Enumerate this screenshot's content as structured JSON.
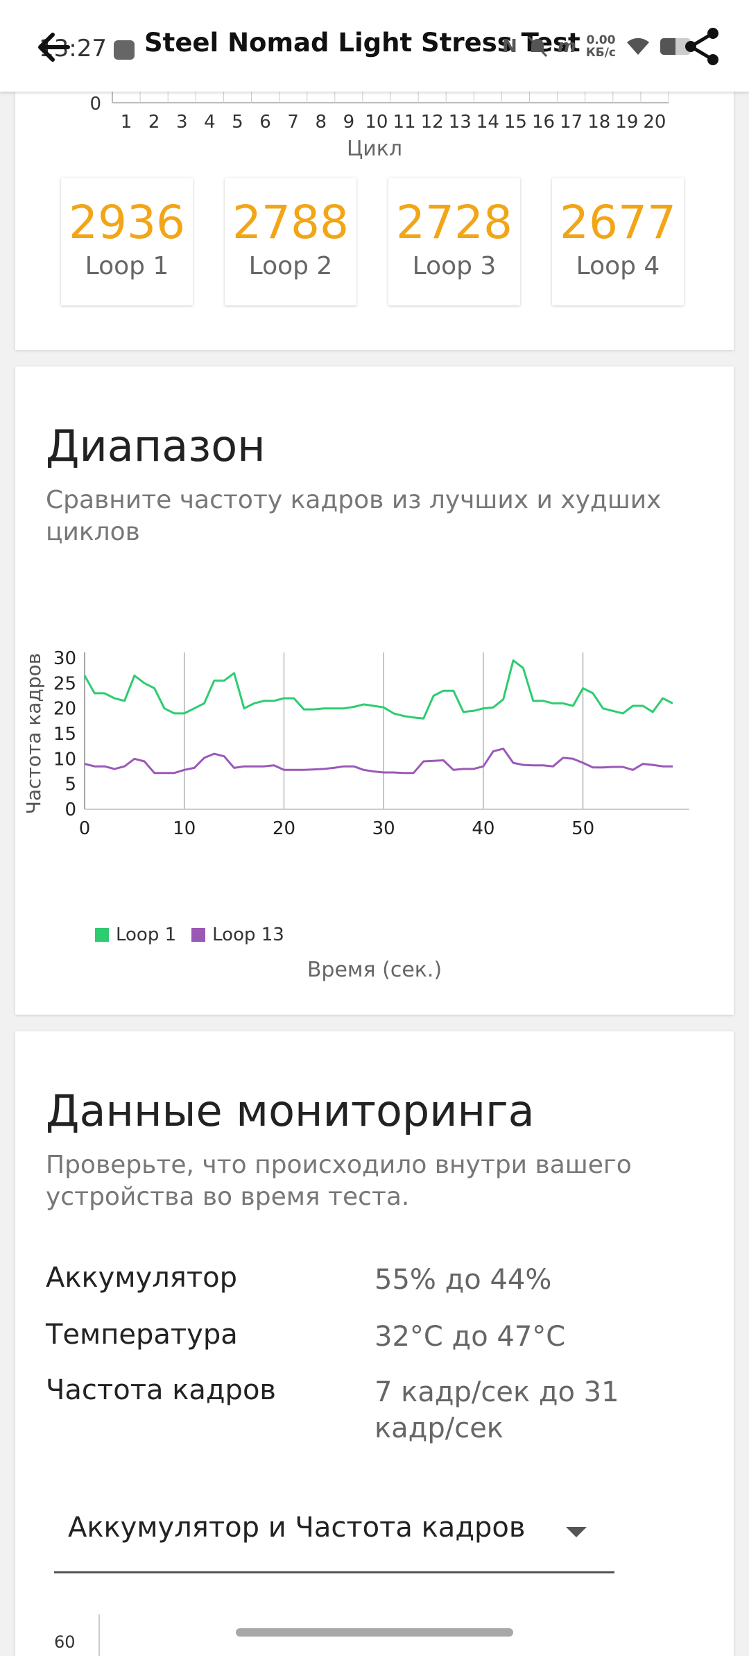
{
  "status": {
    "time": "13:27",
    "net_speed": "0.00",
    "net_unit": "КБ/с"
  },
  "header": {
    "title": "Steel Nomad Light Stress Test"
  },
  "top_chart": {
    "x_ticks": [
      "1",
      "2",
      "3",
      "4",
      "5",
      "6",
      "7",
      "8",
      "9",
      "10",
      "11",
      "12",
      "13",
      "14",
      "15",
      "16",
      "17",
      "18",
      "19",
      "20"
    ],
    "y_tick": "0",
    "xlabel": "Цикл"
  },
  "loops": [
    {
      "score": "2936",
      "label": "Loop 1"
    },
    {
      "score": "2788",
      "label": "Loop 2"
    },
    {
      "score": "2728",
      "label": "Loop 3"
    },
    {
      "score": "2677",
      "label": "Loop 4"
    }
  ],
  "range_section": {
    "title": "Диапазон",
    "subtitle": "Сравните частоту кадров из лучших и худших циклов"
  },
  "chart_data": {
    "type": "line",
    "ylabel": "Частота кадров",
    "xlabel": "Время (сек.)",
    "xlim": [
      0,
      59
    ],
    "ylim": [
      0,
      30
    ],
    "x_ticks": [
      0,
      10,
      20,
      30,
      40,
      50
    ],
    "y_ticks": [
      0,
      5,
      10,
      15,
      20,
      25,
      30
    ],
    "legend_position": "bottom-left",
    "series": [
      {
        "name": "Loop 1",
        "color": "#2ecc71",
        "x": [
          0,
          1,
          2,
          3,
          4,
          5,
          6,
          7,
          8,
          9,
          10,
          11,
          12,
          13,
          14,
          15,
          16,
          17,
          18,
          19,
          20,
          21,
          22,
          23,
          24,
          25,
          26,
          27,
          28,
          29,
          30,
          31,
          32,
          33,
          34,
          35,
          36,
          37,
          38,
          39,
          40,
          41,
          42,
          43,
          44,
          45,
          46,
          47,
          48,
          49,
          50,
          51,
          52,
          53,
          54,
          55,
          56,
          57,
          58,
          59
        ],
        "y": [
          26.5,
          23,
          23,
          22,
          21.5,
          26.5,
          25,
          24,
          20,
          19,
          19,
          20,
          21,
          25.5,
          25.5,
          27,
          20,
          21,
          21.5,
          21.5,
          22,
          22,
          19.8,
          19.8,
          20,
          20,
          20,
          20.3,
          20.8,
          20.5,
          20.2,
          19,
          18.5,
          18.2,
          18,
          22.5,
          23.5,
          23.5,
          19.3,
          19.5,
          20,
          20.2,
          21.8,
          29.5,
          28,
          21.5,
          21.5,
          21,
          21,
          20.5,
          24,
          23,
          20,
          19.5,
          19,
          20.5,
          20.5,
          19.3,
          22,
          21
        ]
      },
      {
        "name": "Loop 13",
        "color": "#9b59b6",
        "x": [
          0,
          1,
          2,
          3,
          4,
          5,
          6,
          7,
          8,
          9,
          10,
          11,
          12,
          13,
          14,
          15,
          16,
          17,
          18,
          19,
          20,
          21,
          22,
          23,
          24,
          25,
          26,
          27,
          28,
          29,
          30,
          31,
          32,
          33,
          34,
          35,
          36,
          37,
          38,
          39,
          40,
          41,
          42,
          43,
          44,
          45,
          46,
          47,
          48,
          49,
          50,
          51,
          52,
          53,
          54,
          55,
          56,
          57,
          58,
          59
        ],
        "y": [
          9,
          8.5,
          8.5,
          8,
          8.5,
          10,
          9.5,
          7.2,
          7.2,
          7.2,
          7.8,
          8.2,
          10.2,
          11,
          10.5,
          8.2,
          8.5,
          8.5,
          8.5,
          8.7,
          7.8,
          7.8,
          7.8,
          7.9,
          8,
          8.2,
          8.5,
          8.5,
          7.8,
          7.5,
          7.3,
          7.3,
          7.2,
          7.2,
          9.5,
          9.6,
          9.7,
          7.8,
          8,
          8,
          8.5,
          11.5,
          12,
          9.2,
          8.8,
          8.7,
          8.7,
          8.5,
          10.2,
          10,
          9.2,
          8.3,
          8.3,
          8.4,
          8.4,
          7.8,
          9,
          8.8,
          8.5,
          8.5
        ]
      }
    ]
  },
  "monitoring": {
    "title": "Данные мониторинга",
    "subtitle": "Проверьте, что происходило внутри вашего устройства во время теста.",
    "rows": [
      {
        "key": "Аккумулятор",
        "value": "55% до 44%"
      },
      {
        "key": "Температура",
        "value": "32°C до 47°C"
      },
      {
        "key": "Частота кадров",
        "value": "7 кадр/сек до 31 кадр/сек"
      }
    ],
    "dropdown_value": "Аккумулятор и Частота кадров",
    "next_chart_tick": "60"
  }
}
